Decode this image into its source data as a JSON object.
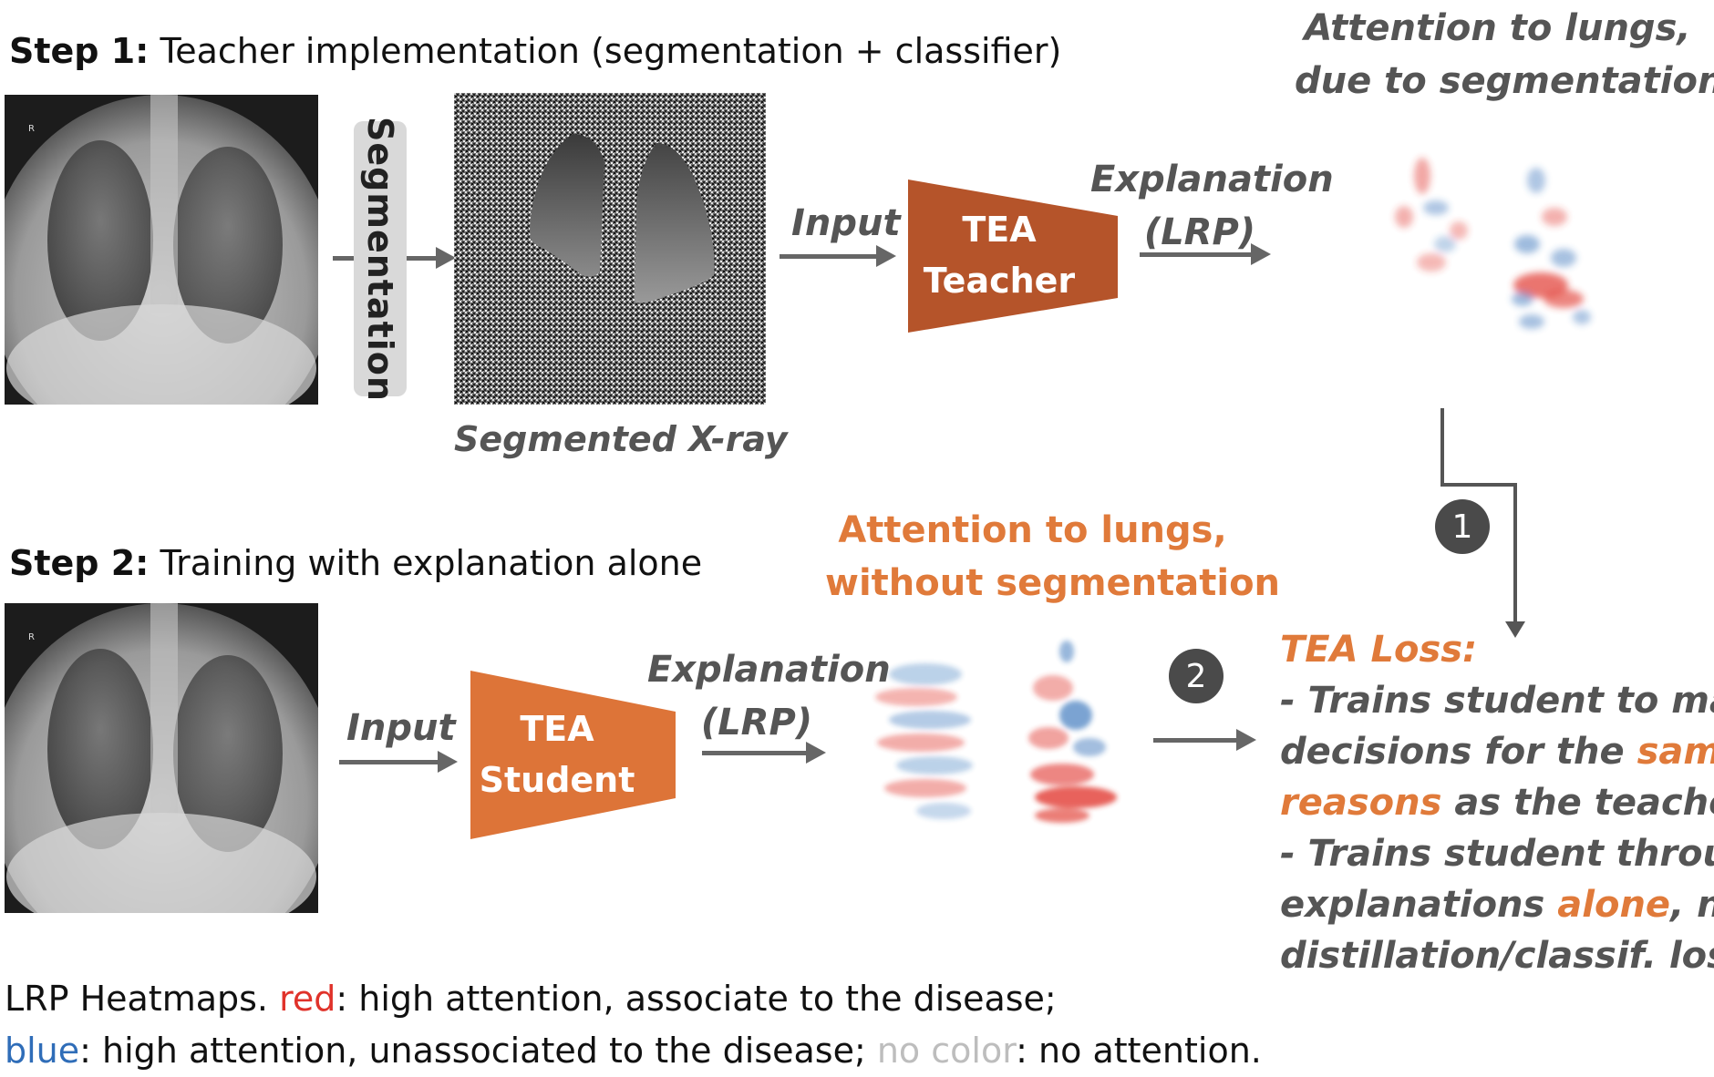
{
  "step1": {
    "label": "Step 1:",
    "text": " Teacher implementation (segmentation + classifier)"
  },
  "step2": {
    "label": "Step 2:",
    "text": " Training with explanation alone"
  },
  "segmentation_label": "Segmentation",
  "segmented_caption": "Segmented X-ray",
  "input_label_1": "Input",
  "input_label_2": "Input",
  "teacher": {
    "line1": "TEA",
    "line2": "Teacher"
  },
  "student": {
    "line1": "TEA",
    "line2": "Student"
  },
  "explanation_1": {
    "line1": "Explanation",
    "line2": "(LRP)"
  },
  "explanation_2": {
    "line1": "Explanation",
    "line2": "(LRP)"
  },
  "attention_top": {
    "line1": "Attention to lungs,",
    "line2": "due to segmentation"
  },
  "attention_mid": {
    "line1": "Attention to lungs,",
    "line2": "without segmentation"
  },
  "badge_1": "1",
  "badge_2": "2",
  "tea_loss": {
    "title": "TEA Loss:",
    "l1": "- Trains student to make",
    "l2a": "decisions for the ",
    "l2b": "same",
    "l3a": "reasons",
    "l3b": " as the teacher",
    "l4": "- Trains student through",
    "l5a": "explanations ",
    "l5b": "alone",
    "l5c": ", no",
    "l6": "distillation/classif. loss"
  },
  "legend": {
    "l1a": "LRP Heatmaps. ",
    "l1b": "red",
    "l1c": ": high attention, associate to the disease;",
    "l2a": "blue",
    "l2b": ": high attention, unassociated to the disease; ",
    "l2c": "no color",
    "l2d": ": no attention."
  },
  "colors": {
    "teacher_fill": "#b5542a",
    "student_fill": "#dd7438",
    "orange_text": "#e07a3a",
    "arrow": "#666666",
    "heat_red": "#e0322a",
    "heat_blue": "#2f6db8"
  }
}
